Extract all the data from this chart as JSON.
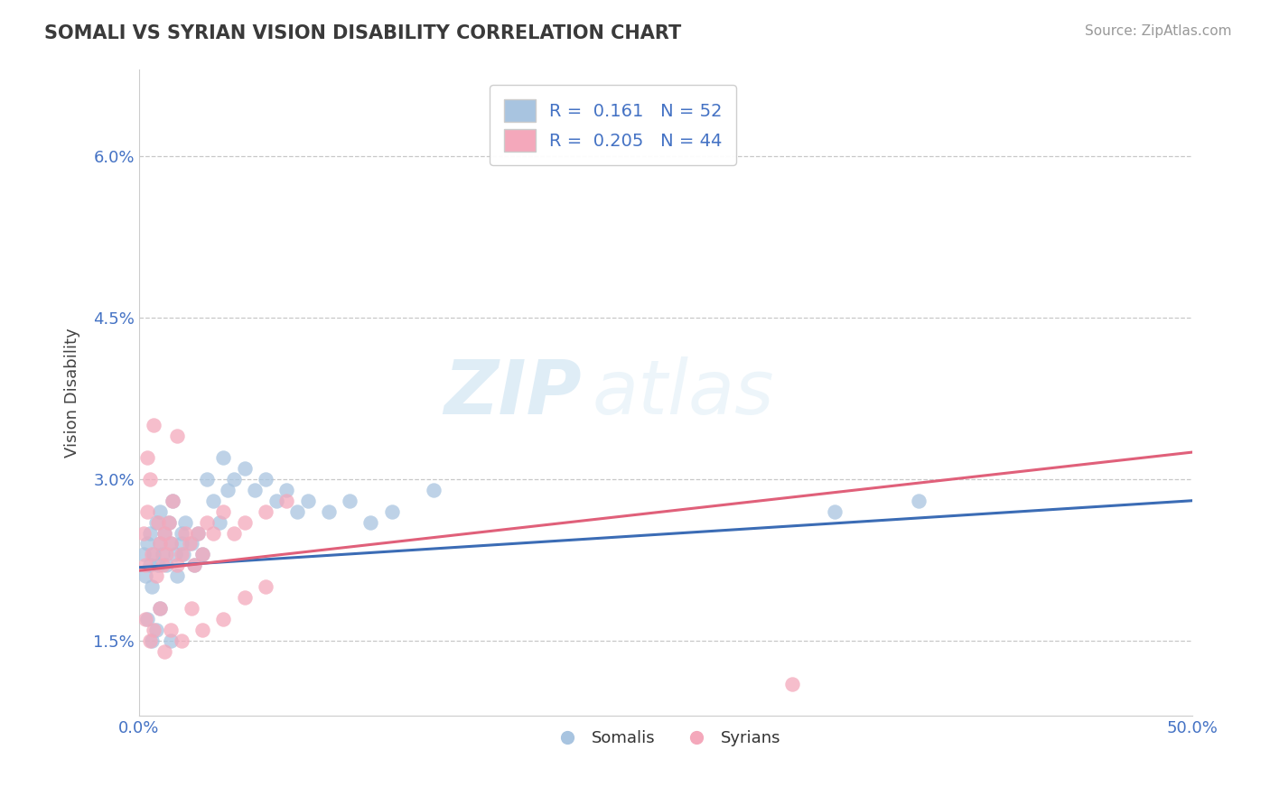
{
  "title": "SOMALI VS SYRIAN VISION DISABILITY CORRELATION CHART",
  "source": "Source: ZipAtlas.com",
  "ylabel": "Vision Disability",
  "watermark": "ZIPatlas",
  "xlim": [
    0.0,
    50.0
  ],
  "ylim_bottom": 0.8,
  "ylim_top": 6.8,
  "yticks": [
    1.5,
    3.0,
    4.5,
    6.0
  ],
  "ytick_labels": [
    "1.5%",
    "3.0%",
    "4.5%",
    "6.0%"
  ],
  "somali_R": 0.161,
  "somali_N": 52,
  "syrian_R": 0.205,
  "syrian_N": 44,
  "somali_color": "#a8c4e0",
  "syrian_color": "#f4a8bb",
  "somali_line_color": "#3b6cb5",
  "syrian_line_color": "#e0607a",
  "background_color": "#ffffff",
  "grid_color": "#c8c8c8",
  "somali_x": [
    0.2,
    0.3,
    0.4,
    0.5,
    0.5,
    0.6,
    0.7,
    0.8,
    0.9,
    1.0,
    1.0,
    1.1,
    1.2,
    1.3,
    1.4,
    1.5,
    1.6,
    1.7,
    1.8,
    2.0,
    2.1,
    2.2,
    2.5,
    2.6,
    2.8,
    3.0,
    3.2,
    3.5,
    3.8,
    4.0,
    4.2,
    4.5,
    5.0,
    5.5,
    6.0,
    6.5,
    7.0,
    7.5,
    8.0,
    9.0,
    10.0,
    11.0,
    12.0,
    14.0,
    33.0,
    37.0,
    0.4,
    0.6,
    0.8,
    1.0,
    1.5,
    2.0
  ],
  "somali_y": [
    2.3,
    2.1,
    2.4,
    2.2,
    2.5,
    2.0,
    2.3,
    2.6,
    2.2,
    2.4,
    2.7,
    2.3,
    2.5,
    2.2,
    2.6,
    2.4,
    2.8,
    2.3,
    2.1,
    2.5,
    2.3,
    2.6,
    2.4,
    2.2,
    2.5,
    2.3,
    3.0,
    2.8,
    2.6,
    3.2,
    2.9,
    3.0,
    3.1,
    2.9,
    3.0,
    2.8,
    2.9,
    2.7,
    2.8,
    2.7,
    2.8,
    2.6,
    2.7,
    2.9,
    2.7,
    2.8,
    1.7,
    1.5,
    1.6,
    1.8,
    1.5,
    2.4
  ],
  "syrian_x": [
    0.2,
    0.3,
    0.4,
    0.5,
    0.6,
    0.7,
    0.8,
    0.9,
    1.0,
    1.1,
    1.2,
    1.3,
    1.4,
    1.5,
    1.6,
    1.8,
    2.0,
    2.2,
    2.4,
    2.6,
    2.8,
    3.0,
    3.2,
    3.5,
    4.0,
    4.5,
    5.0,
    6.0,
    7.0,
    0.3,
    0.5,
    0.7,
    1.0,
    1.2,
    1.5,
    2.0,
    2.5,
    3.0,
    4.0,
    5.0,
    6.0,
    31.0,
    1.8,
    0.4
  ],
  "syrian_y": [
    2.5,
    2.2,
    2.7,
    3.0,
    2.3,
    3.5,
    2.1,
    2.6,
    2.4,
    2.2,
    2.5,
    2.3,
    2.6,
    2.4,
    2.8,
    2.2,
    2.3,
    2.5,
    2.4,
    2.2,
    2.5,
    2.3,
    2.6,
    2.5,
    2.7,
    2.5,
    2.6,
    2.7,
    2.8,
    1.7,
    1.5,
    1.6,
    1.8,
    1.4,
    1.6,
    1.5,
    1.8,
    1.6,
    1.7,
    1.9,
    2.0,
    1.1,
    3.4,
    3.2
  ],
  "blue_line_x0": 0.0,
  "blue_line_y0": 2.18,
  "blue_line_x1": 50.0,
  "blue_line_y1": 2.8,
  "pink_line_x0": 0.0,
  "pink_line_y0": 2.15,
  "pink_line_x1": 50.0,
  "pink_line_y1": 3.25
}
